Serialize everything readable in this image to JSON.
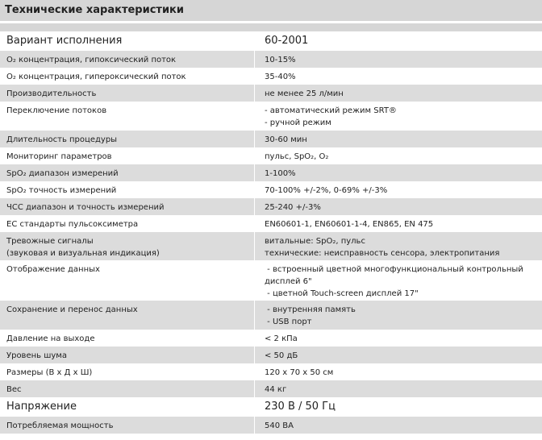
{
  "header": {
    "title": "Технические характеристики"
  },
  "table": {
    "rows": [
      [
        [
          "Вариант исполнения"
        ],
        [
          "60-2001"
        ]
      ],
      [
        [
          "O₂ концентрация, гипоксический поток"
        ],
        [
          "10-15%"
        ]
      ],
      [
        [
          "O₂ концентрация, гипероксический поток"
        ],
        [
          "35-40%"
        ]
      ],
      [
        [
          "Производительность"
        ],
        [
          "не менее 25 л/мин"
        ]
      ],
      [
        [
          "Переключение потоков"
        ],
        [
          "- автоматический режим SRT®",
          "- ручной режим"
        ]
      ],
      [
        [
          "Длительность процедуры"
        ],
        [
          "30-60 мин"
        ]
      ],
      [
        [
          "Мониторинг параметров"
        ],
        [
          "пульс, SpO₂, O₂"
        ]
      ],
      [
        [
          "SpO₂ диапазон измерений"
        ],
        [
          "1-100%"
        ]
      ],
      [
        [
          "SpO₂ точность измерений"
        ],
        [
          "70-100% +/-2%, 0-69% +/-3%"
        ]
      ],
      [
        [
          "ЧСС диапазон и точность измерений"
        ],
        [
          "25-240 +/-3%"
        ]
      ],
      [
        [
          "ЕС стандарты пульсоксиметра"
        ],
        [
          "EN60601-1, EN60601-1-4, EN865, EN 475"
        ]
      ],
      [
        [
          "Тревожные сигналы",
          "(звуковая и визуальная индикация)"
        ],
        [
          "витальные: SpO₂, пульс",
          "технические: неисправность сенсора, электропитания"
        ]
      ],
      [
        [
          "Отображение данных"
        ],
        [
          " - встроенный цветной многофункциональный контрольный",
          "дисплей 6\"",
          " - цветной Touch-screen дисплей 17\""
        ]
      ],
      [
        [
          "Сохранение и перенос данных"
        ],
        [
          " - внутренняя память",
          " - USB порт"
        ]
      ],
      [
        [
          "Давление на выходе"
        ],
        [
          "< 2 кПа"
        ]
      ],
      [
        [
          "Уровень шума"
        ],
        [
          "< 50 дБ"
        ]
      ],
      [
        [
          "Размеры (В х Д х Ш)"
        ],
        [
          "120 х 70 х 50 см"
        ]
      ],
      [
        [
          "Вес"
        ],
        [
          "44 кг"
        ]
      ],
      [
        [
          "Напряжение"
        ],
        [
          "230 В / 50 Гц"
        ]
      ],
      [
        [
          "Потребляемая мощность"
        ],
        [
          "540 ВА"
        ]
      ]
    ]
  }
}
